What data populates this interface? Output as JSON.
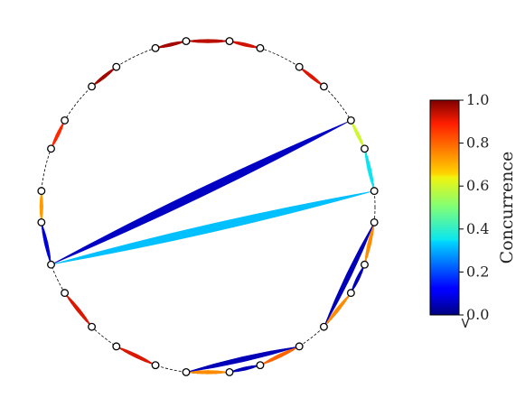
{
  "colorbar": {
    "label": "Concurrence",
    "ticks": [
      "0.0",
      "0.2",
      "0.4",
      "0.6",
      "0.8",
      "1.0"
    ],
    "tick_values": [
      0.0,
      0.2,
      0.4,
      0.6,
      0.8,
      1.0
    ],
    "extend_marker": ">",
    "stops": [
      {
        "v": 0.0,
        "c": "#00007f"
      },
      {
        "v": 0.11,
        "c": "#0000ff"
      },
      {
        "v": 0.125,
        "c": "#0000ff"
      },
      {
        "v": 0.34,
        "c": "#00d4ff"
      },
      {
        "v": 0.35,
        "c": "#0ae6f0"
      },
      {
        "v": 0.5,
        "c": "#7dff7a"
      },
      {
        "v": 0.64,
        "c": "#f0f40f"
      },
      {
        "v": 0.66,
        "c": "#ffd200"
      },
      {
        "v": 0.89,
        "c": "#ff1e00"
      },
      {
        "v": 1.0,
        "c": "#7f0000"
      }
    ]
  },
  "chart_data": {
    "type": "chord-network",
    "node_count": 28,
    "edges": [
      {
        "a": 0,
        "b": 1,
        "c": 0.93
      },
      {
        "a": 2,
        "b": 3,
        "c": 0.92
      },
      {
        "a": 4,
        "b": 5,
        "c": 0.6
      },
      {
        "a": 5,
        "b": 6,
        "c": 0.35
      },
      {
        "a": 6,
        "b": 19,
        "c": 0.32
      },
      {
        "a": 4,
        "b": 19,
        "c": 0.06
      },
      {
        "a": 7,
        "b": 8,
        "c": 0.75
      },
      {
        "a": 9,
        "b": 10,
        "c": 0.75
      },
      {
        "a": 7,
        "b": 10,
        "c": 0.05
      },
      {
        "a": 8,
        "b": 9,
        "c": 0.05
      },
      {
        "a": 11,
        "b": 12,
        "c": 0.8
      },
      {
        "a": 13,
        "b": 14,
        "c": 0.75
      },
      {
        "a": 11,
        "b": 14,
        "c": 0.05
      },
      {
        "a": 12,
        "b": 13,
        "c": 0.05
      },
      {
        "a": 15,
        "b": 16,
        "c": 0.92
      },
      {
        "a": 17,
        "b": 18,
        "c": 0.92
      },
      {
        "a": 19,
        "b": 20,
        "c": 0.08
      },
      {
        "a": 20,
        "b": 21,
        "c": 0.73
      },
      {
        "a": 22,
        "b": 23,
        "c": 0.88
      },
      {
        "a": 24,
        "b": 25,
        "c": 0.97
      },
      {
        "a": 26,
        "b": 27,
        "c": 0.97
      },
      {
        "a": 27,
        "b": 0,
        "c": 0.95
      }
    ]
  }
}
